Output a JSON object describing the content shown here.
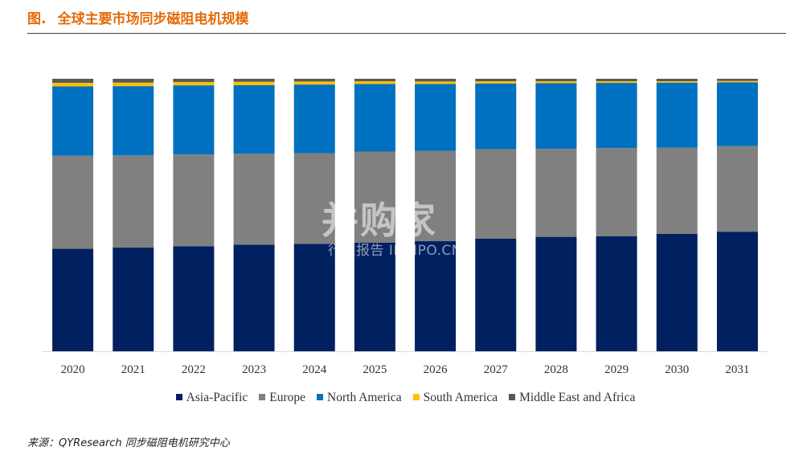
{
  "figure": {
    "prefix": "图.",
    "title": "全球主要市场同步磁阻电机规模"
  },
  "chart_data": {
    "type": "bar",
    "stacked": true,
    "normalized": true,
    "categories": [
      "2020",
      "2021",
      "2022",
      "2023",
      "2024",
      "2025",
      "2026",
      "2027",
      "2028",
      "2029",
      "2030",
      "2031"
    ],
    "series": [
      {
        "name": "Asia-Pacific",
        "color": "#002060",
        "values": [
          37.6,
          38.1,
          38.5,
          39.1,
          39.4,
          39.9,
          40.4,
          41.3,
          42.0,
          42.2,
          43.1,
          43.9
        ]
      },
      {
        "name": "Europe",
        "color": "#808080",
        "values": [
          34.2,
          33.8,
          33.7,
          33.4,
          33.3,
          33.4,
          33.1,
          32.9,
          32.3,
          32.4,
          31.6,
          31.4
        ]
      },
      {
        "name": "North America",
        "color": "#0070c0",
        "values": [
          25.4,
          25.4,
          25.4,
          25.2,
          25.2,
          24.8,
          24.6,
          24.1,
          24.1,
          23.9,
          23.9,
          23.4
        ]
      },
      {
        "name": "South America",
        "color": "#ffc000",
        "values": [
          1.3,
          1.3,
          1.2,
          1.2,
          1.1,
          1.0,
          0.9,
          0.8,
          0.7,
          0.6,
          0.5,
          0.5
        ]
      },
      {
        "name": "Middle East and Africa",
        "color": "#595959",
        "values": [
          1.5,
          1.4,
          1.2,
          1.1,
          1.0,
          0.9,
          1.0,
          0.9,
          0.9,
          0.9,
          0.9,
          0.8
        ]
      }
    ],
    "ylim": [
      0,
      100
    ],
    "grid": false,
    "legend_position": "bottom"
  },
  "watermark": {
    "logo": "并购家",
    "subtitle": "行业报告 IPOIPO.CN"
  },
  "source": {
    "text": "来源：QYResearch 同步磁阻电机研究中心"
  }
}
